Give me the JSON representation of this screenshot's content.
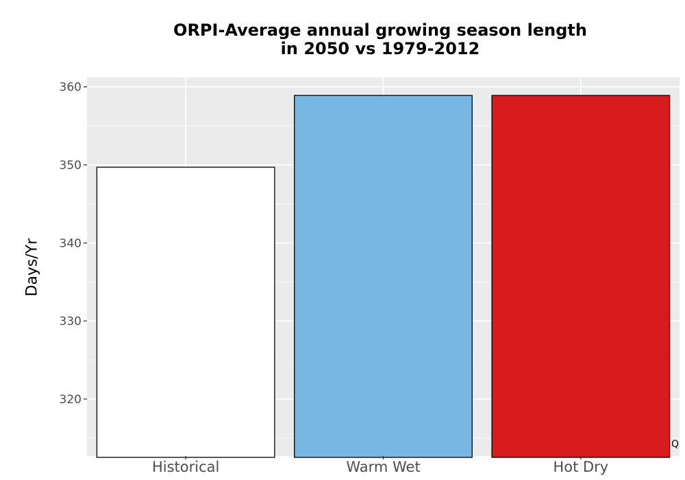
{
  "chart_data": {
    "type": "bar",
    "title_lines": [
      "ORPI-Average annual growing season length",
      "in 2050 vs 1979-2012"
    ],
    "xlabel": "",
    "ylabel": "Days/Yr",
    "categories": [
      "Historical",
      "Warm Wet",
      "Hot Dry"
    ],
    "values": [
      349.7,
      358.9,
      358.9
    ],
    "bar_colors": [
      "#ffffff",
      "#78b7e1",
      "#d81b1d"
    ],
    "ylim": [
      312.7,
      361.2
    ],
    "yticks": [
      320,
      330,
      340,
      350,
      360
    ],
    "grid": true,
    "panel_background": "#ebebeb"
  },
  "corner_mark": "Q"
}
